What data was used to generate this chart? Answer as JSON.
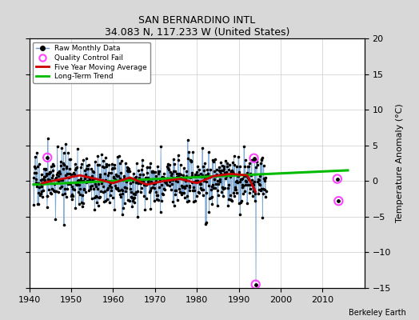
{
  "title": "SAN BERNARDINO INTL",
  "subtitle": "34.083 N, 117.233 W (United States)",
  "ylabel": "Temperature Anomaly (°C)",
  "credit": "Berkeley Earth",
  "xlim": [
    1940,
    2020
  ],
  "ylim": [
    -15,
    20
  ],
  "yticks": [
    -15,
    -10,
    -5,
    0,
    5,
    10,
    15,
    20
  ],
  "xticks": [
    1940,
    1950,
    1960,
    1970,
    1980,
    1990,
    2000,
    2010
  ],
  "bg_color": "#d8d8d8",
  "plot_bg": "#ffffff",
  "raw_color": "#6699cc",
  "dot_color": "#000000",
  "ma_color": "#cc0000",
  "trend_color": "#00bb00",
  "qc_color": "#ff44ff",
  "seed": 17,
  "data_start": 1941.0,
  "data_end": 1996.5,
  "gap_start": 1996.5,
  "trend_x0": 1941.0,
  "trend_y0": -0.5,
  "trend_x1": 2016.0,
  "trend_y1": 1.5,
  "qc_points": [
    {
      "year": 1944.3,
      "value": 3.3
    },
    {
      "year": 1993.6,
      "value": 3.2
    },
    {
      "year": 1994.0,
      "value": -14.5
    },
    {
      "year": 2013.5,
      "value": 0.3
    },
    {
      "year": 2013.8,
      "value": -2.8
    }
  ],
  "ma_wave": [
    [
      1943,
      -0.3
    ],
    [
      1947,
      0.2
    ],
    [
      1952,
      0.8
    ],
    [
      1956,
      0.3
    ],
    [
      1960,
      -0.3
    ],
    [
      1964,
      0.5
    ],
    [
      1968,
      -0.5
    ],
    [
      1972,
      0.0
    ],
    [
      1976,
      0.3
    ],
    [
      1980,
      -0.3
    ],
    [
      1984,
      0.7
    ],
    [
      1988,
      1.0
    ],
    [
      1992,
      0.8
    ],
    [
      1994,
      -1.5
    ]
  ]
}
